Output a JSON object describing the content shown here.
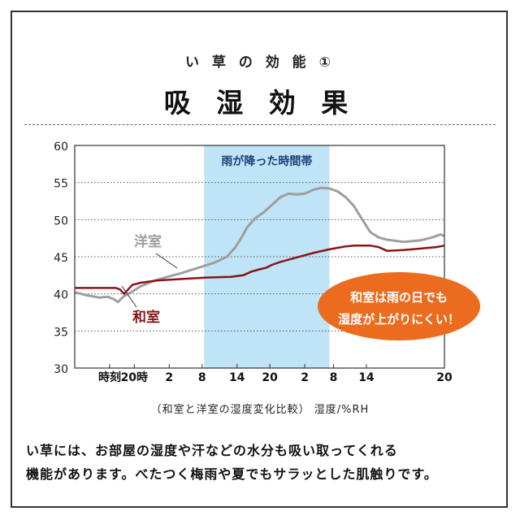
{
  "header": {
    "subtitle": "い 草 の 効 能 ①",
    "title": "吸 湿 効 果"
  },
  "chart_data": {
    "type": "line",
    "y_ticks": [
      30,
      35,
      40,
      45,
      50,
      55,
      60
    ],
    "ylim": [
      30,
      60
    ],
    "x_tick_labels": [
      "時刻",
      "20時",
      "2",
      "8",
      "14",
      "20",
      "2",
      "8",
      "14",
      "20"
    ],
    "x_tick_label_values": [
      0.25,
      0.85,
      1.7,
      2.5,
      3.35,
      4.15,
      5.0,
      5.7,
      6.5,
      8.4
    ],
    "xlim": [
      -0.6,
      8.4
    ],
    "shaded_region": {
      "label": "雨が降った時間帯",
      "x": [
        2.55,
        5.6
      ],
      "color": "#bfe3f7"
    },
    "series": [
      {
        "name": "洋室",
        "color": "#9e9e9e",
        "x": [
          -0.6,
          -0.3,
          0.0,
          0.2,
          0.35,
          0.45,
          0.6,
          0.8,
          1.0,
          1.3,
          1.6,
          2.0,
          2.4,
          2.8,
          3.1,
          3.3,
          3.45,
          3.6,
          3.8,
          4.0,
          4.2,
          4.4,
          4.6,
          4.8,
          5.0,
          5.2,
          5.4,
          5.6,
          5.8,
          6.0,
          6.2,
          6.4,
          6.6,
          6.8,
          7.0,
          7.4,
          7.8,
          8.1,
          8.3,
          8.4
        ],
        "values": [
          40.2,
          39.8,
          39.5,
          39.6,
          39.3,
          38.9,
          39.7,
          40.3,
          41.0,
          41.7,
          42.2,
          42.8,
          43.5,
          44.2,
          45.0,
          46.2,
          47.5,
          49.0,
          50.2,
          51.0,
          52.0,
          53.0,
          53.5,
          53.4,
          53.5,
          54.0,
          54.3,
          54.2,
          53.8,
          53.0,
          51.8,
          50.0,
          48.3,
          47.6,
          47.3,
          47.0,
          47.2,
          47.6,
          48.0,
          47.8
        ]
      },
      {
        "name": "和室",
        "color": "#8b1414",
        "x": [
          -0.6,
          0.0,
          0.4,
          0.5,
          0.6,
          0.8,
          1.0,
          1.4,
          2.0,
          2.6,
          3.2,
          3.5,
          3.7,
          3.9,
          4.05,
          4.2,
          4.4,
          4.8,
          5.2,
          5.6,
          5.8,
          6.0,
          6.2,
          6.4,
          6.6,
          6.8,
          7.0,
          7.4,
          7.8,
          8.2,
          8.4
        ],
        "values": [
          40.8,
          40.8,
          40.8,
          40.6,
          40.0,
          41.2,
          41.5,
          41.8,
          42.0,
          42.2,
          42.3,
          42.5,
          43.0,
          43.3,
          43.5,
          43.9,
          44.3,
          44.9,
          45.5,
          46.0,
          46.2,
          46.4,
          46.5,
          46.5,
          46.5,
          46.3,
          45.8,
          45.9,
          46.1,
          46.3,
          46.5
        ]
      }
    ],
    "callout": {
      "line1": "和室は雨の日でも",
      "line2": "湿度が上がりにくい！",
      "color": "#ec6c1f"
    }
  },
  "caption": "（和室と洋室の湿度変化比較）  湿度/%RH",
  "description": {
    "line1": "い草には、お部屋の湿度や汗などの水分も吸い取ってくれる",
    "line2": "機能があります。べたつく梅雨や夏でもサラッとした肌触りです。"
  }
}
